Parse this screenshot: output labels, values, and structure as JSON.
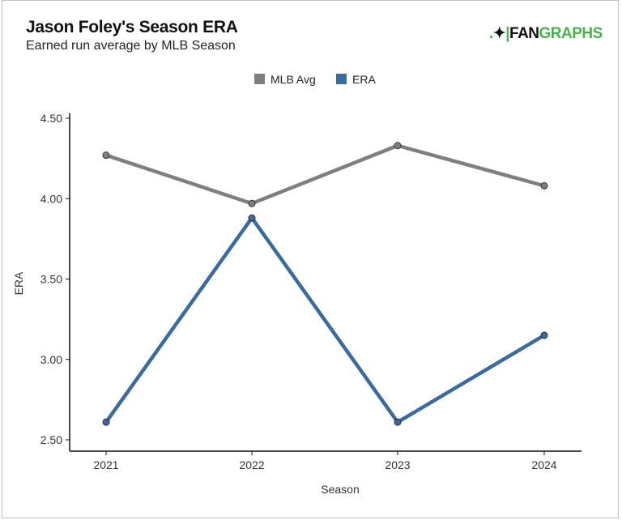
{
  "header": {
    "title": "Jason Foley's Season ERA",
    "subtitle": "Earned run average by MLB Season",
    "logo_text": "FANGRAPHS",
    "logo_part1": "FAN",
    "logo_part2": "GRAPHS"
  },
  "chart_data": {
    "type": "line",
    "title": "Jason Foley's Season ERA",
    "subtitle": "Earned run average by MLB Season",
    "xlabel": "Season",
    "ylabel": "ERA",
    "categories": [
      "2021",
      "2022",
      "2023",
      "2024"
    ],
    "ylim": [
      2.5,
      4.5
    ],
    "yticks": [
      "2.50",
      "3.00",
      "3.50",
      "4.00",
      "4.50"
    ],
    "grid": false,
    "legend": "top-center",
    "series": [
      {
        "name": "MLB Avg",
        "color": "#7f7f7f",
        "values": [
          4.27,
          3.97,
          4.33,
          4.08
        ]
      },
      {
        "name": "ERA",
        "color": "#3a6a9e",
        "values": [
          2.61,
          3.88,
          2.61,
          3.15
        ]
      }
    ]
  }
}
